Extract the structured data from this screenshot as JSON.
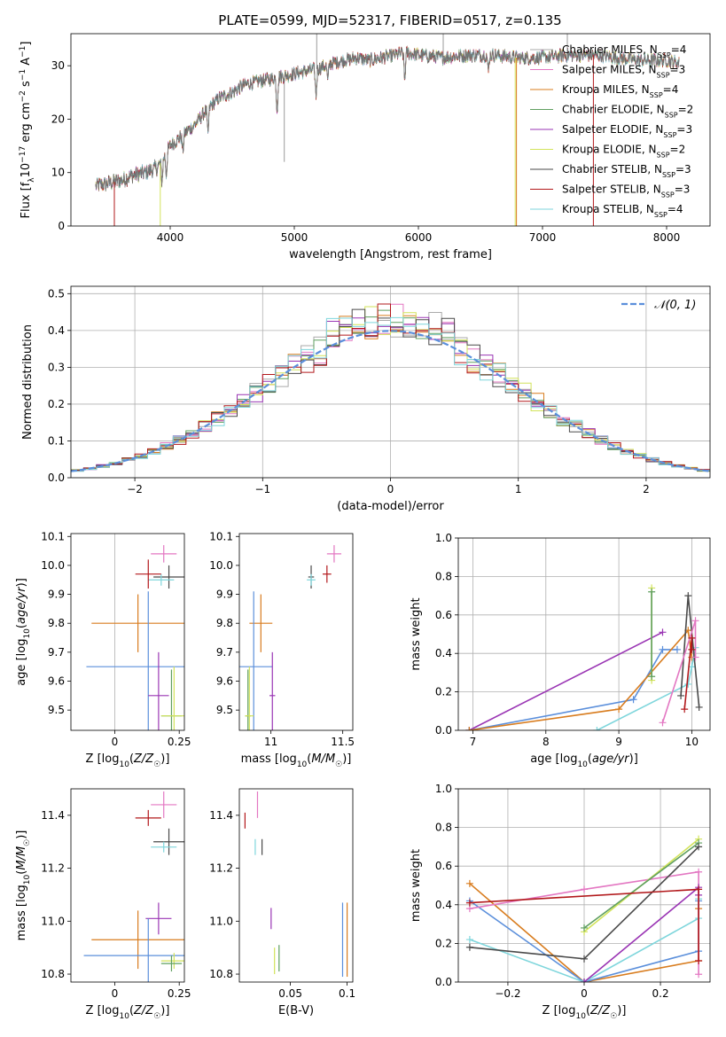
{
  "title": "PLATE=0599, MJD=52317, FIBERID=0517, z=0.135",
  "colors": {
    "chabrier_miles": "#aaaaaa",
    "salpeter_miles": "#e377c2",
    "kroupa_miles": "#d87c1e",
    "chabrier_elodie": "#5f9f5f",
    "salpeter_elodie": "#9a35b4",
    "kroupa_elodie": "#d2e35a",
    "chabrier_stelib": "#4a4a4a",
    "salpeter_stelib": "#b2181b",
    "kroupa_stelib": "#7fd6dc",
    "gaussian": "#5b8fdb",
    "blue": "#5b8fdb"
  },
  "chart_data": [
    {
      "id": "spectrum",
      "type": "line",
      "xlabel": "wavelength [Angstrom, rest frame]",
      "ylabel": "Flux [f_λ 10^-17 erg cm^-2 s^-1 A^-1]",
      "xlim": [
        3200,
        8350
      ],
      "ylim": [
        0,
        36
      ],
      "xticks": [
        4000,
        5000,
        6000,
        7000,
        8000
      ],
      "yticks": [
        0,
        10,
        20,
        30
      ],
      "grid": false,
      "legend_position": "upper-right",
      "legend": [
        "Chabrier MILES, N_SSP=4",
        "Salpeter MILES, N_SSP=3",
        "Kroupa MILES, N_SSP=4",
        "Chabrier ELODIE, N_SSP=2",
        "Salpeter ELODIE, N_SSP=3",
        "Kroupa ELODIE, N_SSP=2",
        "Chabrier STELIB, N_SSP=3",
        "Salpeter STELIB, N_SSP=3",
        "Kroupa STELIB, N_SSP=4"
      ],
      "continuum": {
        "x": [
          3400,
          3500,
          3600,
          3700,
          3800,
          3900,
          4000,
          4100,
          4200,
          4300,
          4400,
          4500,
          4600,
          4700,
          4800,
          4900,
          5000,
          5100,
          5200,
          5300,
          5400,
          5500,
          5600,
          5700,
          5800,
          5900,
          6000,
          6200,
          6400,
          6600,
          6800,
          7000,
          7200,
          7400,
          7600,
          7800,
          8000,
          8100
        ],
        "y": [
          7.5,
          8.0,
          8.5,
          9.5,
          10,
          11,
          15,
          17,
          19,
          22,
          24,
          25,
          26.5,
          27,
          27.5,
          28,
          28.5,
          29,
          29.5,
          30.5,
          31,
          31.5,
          31,
          31.5,
          32,
          32.5,
          32,
          31.5,
          32,
          32,
          31.5,
          31.5,
          32,
          32,
          31.5,
          31,
          31,
          30.5
        ]
      },
      "absorption_features": [
        {
          "x": 3934,
          "depth": 4
        },
        {
          "x": 3969,
          "depth": 4
        },
        {
          "x": 4102,
          "depth": 3
        },
        {
          "x": 4304,
          "depth": 5
        },
        {
          "x": 4861,
          "depth": 6
        },
        {
          "x": 5175,
          "depth": 5
        },
        {
          "x": 5270,
          "depth": 3
        },
        {
          "x": 5890,
          "depth": 5
        },
        {
          "x": 6563,
          "depth": 3
        }
      ],
      "spikes": [
        {
          "x": 4920,
          "y": 12
        },
        {
          "x": 5180,
          "y": 36
        },
        {
          "x": 6200,
          "y": 36
        },
        {
          "x": 7200,
          "y": 36
        }
      ],
      "model_cutoffs": [
        {
          "series": "salpeter_stelib",
          "x": 3550
        },
        {
          "series": "kroupa_elodie",
          "x": 3920
        },
        {
          "series": "kroupa_elodie",
          "x": 6780
        },
        {
          "series": "kroupa_miles",
          "x": 6790
        },
        {
          "series": "salpeter_stelib",
          "x": 7410
        }
      ]
    },
    {
      "id": "residuals",
      "type": "step",
      "xlabel": "(data-model)/error",
      "ylabel": "Normed distribution",
      "xlim": [
        -2.5,
        2.5
      ],
      "ylim": [
        0,
        0.52
      ],
      "xticks": [
        -2,
        -1,
        0,
        1,
        2
      ],
      "yticks": [
        0.0,
        0.1,
        0.2,
        0.3,
        0.4,
        0.5
      ],
      "grid": true,
      "legend_position": "upper-right",
      "gaussian_label": "𝒩(0, 1)",
      "bin_width": 0.1
    },
    {
      "id": "age_vs_Z",
      "type": "errorbar",
      "xlabel": "Z [log10(Z/Z☉)]",
      "ylabel": "age [log10(age/yr)]",
      "xlim": [
        -0.17,
        0.27
      ],
      "ylim": [
        9.43,
        10.11
      ],
      "xticks": [
        0.0,
        0.25
      ],
      "yticks": [
        9.5,
        9.6,
        9.7,
        9.8,
        9.9,
        10.0,
        10.1
      ],
      "points": [
        {
          "series": "salpeter_miles",
          "x": 0.19,
          "y": 10.04,
          "xerr": 0.05,
          "yerr": 0.03
        },
        {
          "series": "chabrier_stelib",
          "x": 0.21,
          "y": 9.96,
          "xerr": 0.06,
          "yerr": 0.04
        },
        {
          "series": "kroupa_stelib",
          "x": 0.18,
          "y": 9.95,
          "xerr": 0.05,
          "yerr": 0.02
        },
        {
          "series": "salpeter_stelib",
          "x": 0.13,
          "y": 9.97,
          "xerr": 0.05,
          "yerr": 0.05
        },
        {
          "series": "kroupa_miles",
          "x": 0.09,
          "y": 9.8,
          "xerr": 0.18,
          "yerr": 0.1
        },
        {
          "series": "blue",
          "x": 0.13,
          "y": 9.65,
          "xerr": 0.24,
          "yerr": 0.26
        },
        {
          "series": "salpeter_elodie",
          "x": 0.17,
          "y": 9.55,
          "xerr": 0.04,
          "yerr": 0.15
        },
        {
          "series": "chabrier_elodie",
          "x": 0.22,
          "y": 9.48,
          "xerr": 0.04,
          "yerr": 0.16
        },
        {
          "series": "kroupa_elodie",
          "x": 0.23,
          "y": 9.48,
          "xerr": 0.05,
          "yerr": 0.17
        }
      ]
    },
    {
      "id": "age_vs_mass",
      "type": "errorbar",
      "xlabel": "mass [log10(M/M☉)]",
      "ylabel": "",
      "xlim": [
        10.78,
        11.57
      ],
      "ylim": [
        9.43,
        10.11
      ],
      "xticks": [
        11.0,
        11.5
      ],
      "yticks": [
        9.5,
        9.6,
        9.7,
        9.8,
        9.9,
        10.0,
        10.1
      ],
      "points": [
        {
          "series": "salpeter_miles",
          "x": 11.44,
          "y": 10.04,
          "xerr": 0.05,
          "yerr": 0.03
        },
        {
          "series": "chabrier_stelib",
          "x": 11.28,
          "y": 9.96,
          "xerr": 0.02,
          "yerr": 0.04
        },
        {
          "series": "kroupa_stelib",
          "x": 11.28,
          "y": 9.95,
          "xerr": 0.03,
          "yerr": 0.02
        },
        {
          "series": "salpeter_stelib",
          "x": 11.39,
          "y": 9.97,
          "xerr": 0.03,
          "yerr": 0.03
        },
        {
          "series": "kroupa_miles",
          "x": 10.93,
          "y": 9.8,
          "xerr": 0.08,
          "yerr": 0.1
        },
        {
          "series": "blue",
          "x": 10.88,
          "y": 9.65,
          "xerr": 0.13,
          "yerr": 0.26
        },
        {
          "series": "salpeter_elodie",
          "x": 11.01,
          "y": 9.55,
          "xerr": 0.02,
          "yerr": 0.15
        },
        {
          "series": "chabrier_elodie",
          "x": 10.84,
          "y": 9.48,
          "xerr": 0.02,
          "yerr": 0.16
        },
        {
          "series": "kroupa_elodie",
          "x": 10.85,
          "y": 9.48,
          "xerr": 0.03,
          "yerr": 0.17
        }
      ]
    },
    {
      "id": "massweight_vs_age",
      "type": "line",
      "xlabel": "age  [log10(age/yr)]",
      "ylabel": "mass weight",
      "xlim": [
        6.8,
        10.25
      ],
      "ylim": [
        0.0,
        1.0
      ],
      "xticks": [
        7,
        8,
        9,
        10
      ],
      "yticks": [
        0.0,
        0.2,
        0.4,
        0.6,
        0.8,
        1.0
      ],
      "grid": true,
      "series": [
        {
          "series": "salpeter_elodie",
          "x": [
            6.95,
            9.6
          ],
          "y": [
            0.0,
            0.51
          ]
        },
        {
          "series": "blue",
          "x": [
            6.95,
            9.2,
            9.6,
            9.8
          ],
          "y": [
            0.0,
            0.16,
            0.42,
            0.42
          ]
        },
        {
          "series": "kroupa_miles",
          "x": [
            6.95,
            9.0,
            9.95,
            10.0
          ],
          "y": [
            0.0,
            0.11,
            0.52,
            0.38
          ]
        },
        {
          "series": "kroupa_stelib",
          "x": [
            8.7,
            9.95,
            10.0,
            10.05
          ],
          "y": [
            0.0,
            0.24,
            0.33,
            0.43
          ]
        },
        {
          "series": "kroupa_elodie",
          "x": [
            9.45,
            9.45
          ],
          "y": [
            0.26,
            0.74
          ]
        },
        {
          "series": "chabrier_elodie",
          "x": [
            9.45,
            9.45
          ],
          "y": [
            0.28,
            0.72
          ]
        },
        {
          "series": "chabrier_stelib",
          "x": [
            9.85,
            9.95,
            10.1
          ],
          "y": [
            0.18,
            0.7,
            0.12
          ]
        },
        {
          "series": "salpeter_miles",
          "x": [
            9.6,
            10.05,
            10.05
          ],
          "y": [
            0.04,
            0.57,
            0.38
          ]
        },
        {
          "series": "salpeter_stelib",
          "x": [
            9.9,
            10.0,
            10.0
          ],
          "y": [
            0.11,
            0.48,
            0.42
          ]
        }
      ]
    },
    {
      "id": "mass_vs_Z",
      "type": "errorbar",
      "xlabel": "Z [log10(Z/Z☉)]",
      "ylabel": "mass [log10(M/M☉)]",
      "xlim": [
        -0.17,
        0.27
      ],
      "ylim": [
        10.77,
        11.5
      ],
      "xticks": [
        0.0,
        0.25
      ],
      "yticks": [
        10.8,
        11.0,
        11.2,
        11.4
      ],
      "points": [
        {
          "series": "salpeter_miles",
          "x": 0.19,
          "y": 11.44,
          "xerr": 0.05,
          "yerr": 0.05
        },
        {
          "series": "salpeter_stelib",
          "x": 0.13,
          "y": 11.39,
          "xerr": 0.05,
          "yerr": 0.03
        },
        {
          "series": "chabrier_stelib",
          "x": 0.21,
          "y": 11.3,
          "xerr": 0.06,
          "yerr": 0.05
        },
        {
          "series": "kroupa_stelib",
          "x": 0.19,
          "y": 11.28,
          "xerr": 0.05,
          "yerr": 0.02
        },
        {
          "series": "salpeter_elodie",
          "x": 0.17,
          "y": 11.01,
          "xerr": 0.05,
          "yerr": 0.06
        },
        {
          "series": "kroupa_miles",
          "x": 0.09,
          "y": 10.93,
          "xerr": 0.18,
          "yerr": 0.11
        },
        {
          "series": "blue",
          "x": 0.13,
          "y": 10.87,
          "xerr": 0.25,
          "yerr": 0.14
        },
        {
          "series": "kroupa_elodie",
          "x": 0.23,
          "y": 10.85,
          "xerr": 0.05,
          "yerr": 0.03
        },
        {
          "series": "chabrier_elodie",
          "x": 0.22,
          "y": 10.84,
          "xerr": 0.04,
          "yerr": 0.03
        }
      ]
    },
    {
      "id": "mass_vs_ebv",
      "type": "errorbar",
      "xlabel": "E(B-V)",
      "ylabel": "",
      "xlim": [
        0.005,
        0.105
      ],
      "ylim": [
        10.77,
        11.5
      ],
      "xticks": [
        0.05,
        0.1
      ],
      "yticks": [
        10.8,
        11.0,
        11.2,
        11.4
      ],
      "points": [
        {
          "series": "salpeter_miles",
          "x": 0.021,
          "y": 11.44,
          "xerr": 0.0,
          "yerr": 0.05
        },
        {
          "series": "salpeter_stelib",
          "x": 0.01,
          "y": 11.38,
          "xerr": 0.0,
          "yerr": 0.03
        },
        {
          "series": "chabrier_stelib",
          "x": 0.025,
          "y": 11.28,
          "xerr": 0.0,
          "yerr": 0.03
        },
        {
          "series": "kroupa_stelib",
          "x": 0.019,
          "y": 11.28,
          "xerr": 0.0,
          "yerr": 0.03
        },
        {
          "series": "salpeter_elodie",
          "x": 0.033,
          "y": 11.01,
          "xerr": 0.0,
          "yerr": 0.04
        },
        {
          "series": "kroupa_miles",
          "x": 0.1,
          "y": 10.93,
          "xerr": 0.0,
          "yerr": 0.14
        },
        {
          "series": "blue",
          "x": 0.096,
          "y": 10.93,
          "xerr": 0.0,
          "yerr": 0.14
        },
        {
          "series": "kroupa_elodie",
          "x": 0.036,
          "y": 10.85,
          "xerr": 0.0,
          "yerr": 0.05
        },
        {
          "series": "chabrier_elodie",
          "x": 0.04,
          "y": 10.86,
          "xerr": 0.0,
          "yerr": 0.05
        }
      ]
    },
    {
      "id": "massweight_vs_Z",
      "type": "line",
      "xlabel": "Z [log10(Z/Z☉)]",
      "ylabel": "mass weight",
      "xlim": [
        -0.33,
        0.33
      ],
      "ylim": [
        0.0,
        1.0
      ],
      "xticks": [
        -0.2,
        0.0,
        0.2
      ],
      "yticks": [
        0.0,
        0.2,
        0.4,
        0.6,
        0.8,
        1.0
      ],
      "grid": true,
      "series": [
        {
          "series": "kroupa_miles",
          "x": [
            -0.3,
            0.0,
            0.3,
            0.3
          ],
          "y": [
            0.51,
            0.0,
            0.11,
            0.38
          ]
        },
        {
          "series": "blue",
          "x": [
            -0.3,
            0.0,
            0.3,
            0.3
          ],
          "y": [
            0.42,
            0.0,
            0.16,
            0.42
          ]
        },
        {
          "series": "kroupa_stelib",
          "x": [
            -0.3,
            0.0,
            0.3,
            0.3
          ],
          "y": [
            0.22,
            0.0,
            0.33,
            0.43
          ]
        },
        {
          "series": "salpeter_miles",
          "x": [
            -0.3,
            0.0,
            0.3,
            0.3
          ],
          "y": [
            0.38,
            0.48,
            0.57,
            0.04
          ]
        },
        {
          "series": "salpeter_elodie",
          "x": [
            0.0,
            0.3,
            0.3
          ],
          "y": [
            0.0,
            0.49,
            0.45
          ]
        },
        {
          "series": "kroupa_elodie",
          "x": [
            0.0,
            0.3
          ],
          "y": [
            0.26,
            0.74
          ]
        },
        {
          "series": "chabrier_elodie",
          "x": [
            0.0,
            0.3
          ],
          "y": [
            0.28,
            0.72
          ]
        },
        {
          "series": "chabrier_stelib",
          "x": [
            -0.3,
            0.0,
            0.3
          ],
          "y": [
            0.18,
            0.12,
            0.7
          ]
        },
        {
          "series": "salpeter_stelib",
          "x": [
            -0.3,
            0.3,
            0.3
          ],
          "y": [
            0.41,
            0.48,
            0.11
          ]
        }
      ]
    }
  ]
}
